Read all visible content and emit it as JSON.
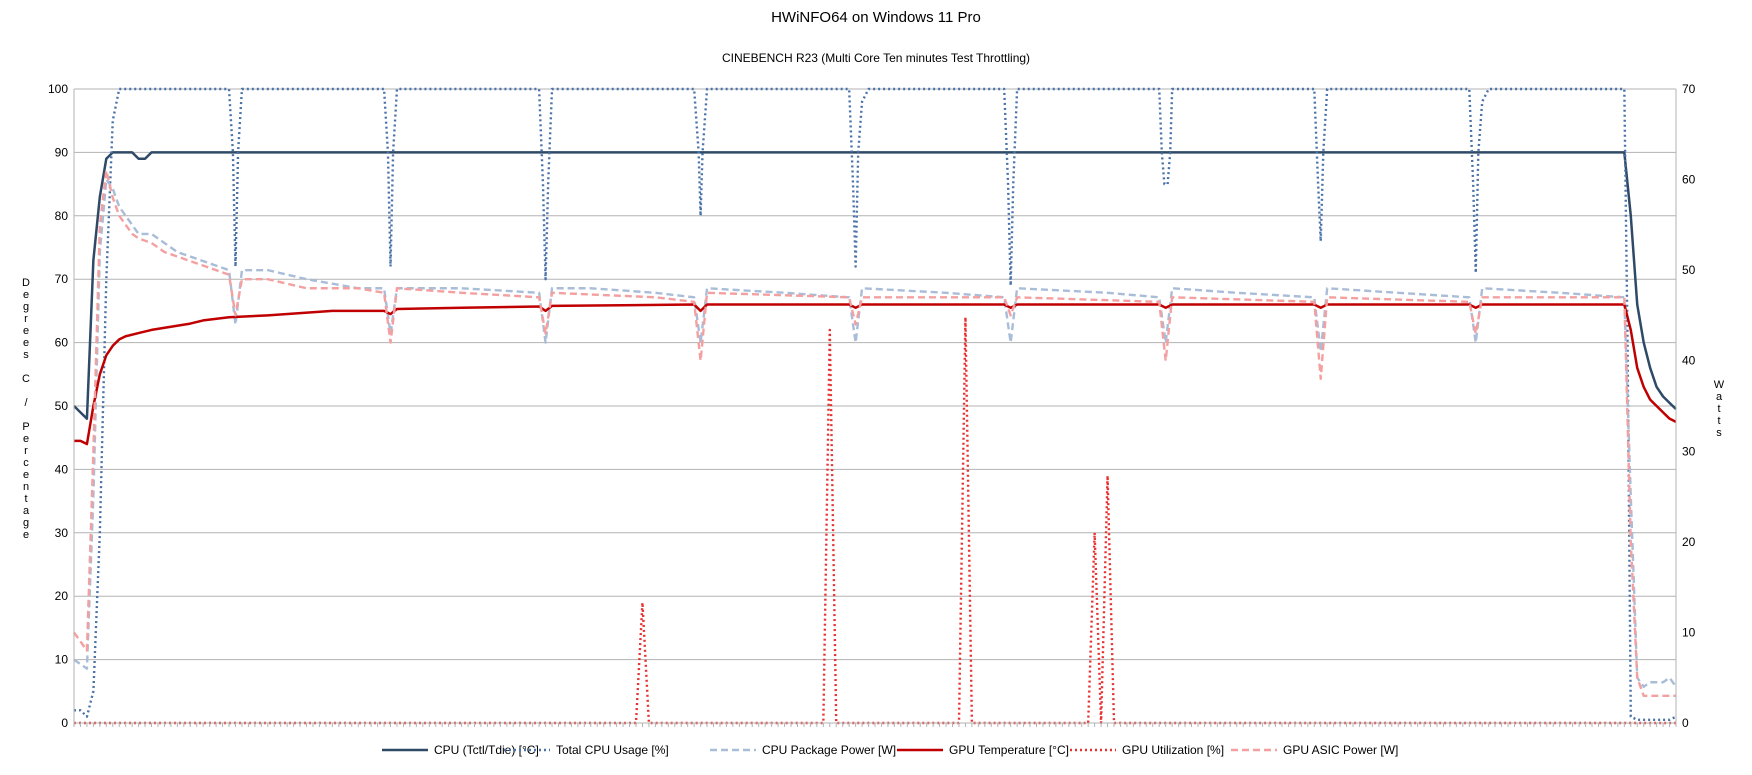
{
  "chart_data": {
    "type": "line",
    "title": "HWiNFO64 on Windows 11 Pro",
    "subtitle": "CINEBENCH R23 (Multi Core Ten minutes Test Throttling)",
    "ylabel": "Degrees C / Percentage",
    "y2label": "Watts",
    "ylim": [
      0,
      100
    ],
    "y2lim": [
      0,
      70
    ],
    "yticks": [
      0,
      10,
      20,
      30,
      40,
      50,
      60,
      70,
      80,
      90,
      100
    ],
    "y2ticks": [
      0,
      10,
      20,
      30,
      40,
      50,
      60,
      70
    ],
    "grid": true,
    "legend_position": "bottom",
    "x_count": 249,
    "series": [
      {
        "name": "CPU (Tctl/Tdie) [°C]",
        "axis": "left",
        "color": "#2e4a66",
        "style": "solid",
        "points": [
          [
            0,
            50
          ],
          [
            1,
            49
          ],
          [
            2,
            48
          ],
          [
            3,
            73
          ],
          [
            4,
            83
          ],
          [
            5,
            89
          ],
          [
            6,
            90
          ],
          [
            7,
            90
          ],
          [
            8,
            90
          ],
          [
            9,
            90
          ],
          [
            10,
            89
          ],
          [
            11,
            89
          ],
          [
            12,
            90
          ],
          [
            13,
            90
          ],
          [
            14,
            90
          ],
          [
            20,
            90
          ],
          [
            30,
            90
          ],
          [
            60,
            90
          ],
          [
            100,
            90
          ],
          [
            150,
            90
          ],
          [
            200,
            90
          ],
          [
            240,
            90
          ],
          [
            241,
            80
          ],
          [
            242,
            66
          ],
          [
            243,
            60
          ],
          [
            244,
            56
          ],
          [
            245,
            53
          ],
          [
            246,
            51.5
          ],
          [
            247,
            50.5
          ],
          [
            248,
            49.5
          ]
        ]
      },
      {
        "name": "Total CPU Usage [%]",
        "axis": "left",
        "color": "#4a72a8",
        "style": "dotted",
        "points": [
          [
            0,
            2
          ],
          [
            1,
            2
          ],
          [
            2,
            1
          ],
          [
            3,
            5
          ],
          [
            4,
            30
          ],
          [
            5,
            70
          ],
          [
            6,
            95
          ],
          [
            7,
            100
          ],
          [
            24,
            100
          ],
          [
            24.6,
            90
          ],
          [
            25,
            72
          ],
          [
            25.4,
            90
          ],
          [
            26,
            100
          ],
          [
            48,
            100
          ],
          [
            48.6,
            90
          ],
          [
            49,
            72
          ],
          [
            49.4,
            90
          ],
          [
            50,
            100
          ],
          [
            72,
            100
          ],
          [
            72.6,
            85
          ],
          [
            73,
            70
          ],
          [
            73.4,
            85
          ],
          [
            74,
            100
          ],
          [
            96,
            100
          ],
          [
            96.7,
            90
          ],
          [
            97,
            80
          ],
          [
            97.3,
            90
          ],
          [
            98,
            100
          ],
          [
            120,
            100
          ],
          [
            120.6,
            85
          ],
          [
            121,
            72
          ],
          [
            121.4,
            90
          ],
          [
            122,
            98
          ],
          [
            123,
            100
          ],
          [
            144,
            100
          ],
          [
            144.6,
            85
          ],
          [
            145,
            69
          ],
          [
            145.4,
            85
          ],
          [
            146,
            100
          ],
          [
            168,
            100
          ],
          [
            168.4,
            90
          ],
          [
            168.8,
            85
          ],
          [
            169.3,
            85
          ],
          [
            169.7,
            90
          ],
          [
            170,
            100
          ],
          [
            192,
            100
          ],
          [
            192.6,
            85
          ],
          [
            193,
            76
          ],
          [
            193.4,
            90
          ],
          [
            194,
            100
          ],
          [
            216,
            100
          ],
          [
            216.6,
            85
          ],
          [
            217,
            71
          ],
          [
            217.4,
            90
          ],
          [
            218,
            98
          ],
          [
            219,
            100
          ],
          [
            240,
            100
          ],
          [
            240.5,
            60
          ],
          [
            241,
            1
          ],
          [
            242,
            0.5
          ],
          [
            244,
            0.5
          ],
          [
            246,
            0.5
          ],
          [
            247,
            0.5
          ],
          [
            248,
            1
          ]
        ]
      },
      {
        "name": "CPU Package Power [W]",
        "axis": "right",
        "color": "#a9bdd8",
        "style": "dashed",
        "points": [
          [
            0,
            7
          ],
          [
            1,
            6.5
          ],
          [
            2,
            6
          ],
          [
            3,
            25
          ],
          [
            4,
            52
          ],
          [
            5,
            60
          ],
          [
            6,
            59
          ],
          [
            7,
            57
          ],
          [
            8,
            56
          ],
          [
            9,
            55
          ],
          [
            10,
            54
          ],
          [
            12,
            54
          ],
          [
            14,
            53
          ],
          [
            16,
            52
          ],
          [
            18,
            51.5
          ],
          [
            20,
            51
          ],
          [
            22,
            50.5
          ],
          [
            24,
            50
          ],
          [
            25,
            44
          ],
          [
            26,
            50
          ],
          [
            30,
            50
          ],
          [
            36,
            49
          ],
          [
            44,
            48
          ],
          [
            48,
            48
          ],
          [
            49,
            43
          ],
          [
            50,
            48
          ],
          [
            60,
            48
          ],
          [
            72,
            47.5
          ],
          [
            73,
            42
          ],
          [
            74,
            48
          ],
          [
            80,
            48
          ],
          [
            90,
            47.5
          ],
          [
            96,
            47
          ],
          [
            97,
            42
          ],
          [
            98,
            48
          ],
          [
            110,
            47.5
          ],
          [
            120,
            47
          ],
          [
            121,
            42
          ],
          [
            122,
            48
          ],
          [
            135,
            47.5
          ],
          [
            144,
            47
          ],
          [
            145,
            42
          ],
          [
            146,
            48
          ],
          [
            160,
            47.5
          ],
          [
            168,
            47
          ],
          [
            169,
            42
          ],
          [
            170,
            48
          ],
          [
            180,
            47.5
          ],
          [
            192,
            47
          ],
          [
            193,
            41
          ],
          [
            194,
            48
          ],
          [
            205,
            47.5
          ],
          [
            216,
            47
          ],
          [
            217,
            42
          ],
          [
            218,
            48
          ],
          [
            230,
            47.5
          ],
          [
            240,
            47
          ],
          [
            241,
            25
          ],
          [
            242,
            5
          ],
          [
            243,
            4
          ],
          [
            244,
            4.5
          ],
          [
            246,
            4.5
          ],
          [
            247,
            5
          ],
          [
            248,
            4
          ]
        ]
      },
      {
        "name": "GPU Temperature [°C]",
        "axis": "left",
        "color": "#c00000",
        "style": "solid",
        "points": [
          [
            0,
            44.5
          ],
          [
            1,
            44.5
          ],
          [
            2,
            44
          ],
          [
            3,
            50
          ],
          [
            4,
            55
          ],
          [
            5,
            58
          ],
          [
            6,
            59.5
          ],
          [
            7,
            60.5
          ],
          [
            8,
            61
          ],
          [
            10,
            61.5
          ],
          [
            12,
            62
          ],
          [
            15,
            62.5
          ],
          [
            18,
            63
          ],
          [
            20,
            63.5
          ],
          [
            24,
            64
          ],
          [
            30,
            64.3
          ],
          [
            40,
            65
          ],
          [
            48,
            65
          ],
          [
            49,
            64.5
          ],
          [
            50,
            65.3
          ],
          [
            60,
            65.5
          ],
          [
            72,
            65.7
          ],
          [
            73,
            65
          ],
          [
            74,
            65.8
          ],
          [
            96,
            66
          ],
          [
            97,
            65
          ],
          [
            98,
            66
          ],
          [
            120,
            66
          ],
          [
            121,
            65.5
          ],
          [
            122,
            66
          ],
          [
            144,
            66
          ],
          [
            145,
            65.5
          ],
          [
            146,
            66
          ],
          [
            168,
            66
          ],
          [
            169,
            65.5
          ],
          [
            170,
            66
          ],
          [
            192,
            66
          ],
          [
            193,
            65.5
          ],
          [
            194,
            66
          ],
          [
            216,
            66
          ],
          [
            217,
            65.5
          ],
          [
            218,
            66
          ],
          [
            240,
            66
          ],
          [
            241,
            62
          ],
          [
            242,
            56
          ],
          [
            243,
            53
          ],
          [
            244,
            51
          ],
          [
            245,
            50
          ],
          [
            246,
            49
          ],
          [
            247,
            48
          ],
          [
            248,
            47.5
          ]
        ]
      },
      {
        "name": "GPU Utilization [%]",
        "axis": "left",
        "color": "#e83030",
        "style": "dotted",
        "points": [
          [
            0,
            0
          ],
          [
            87,
            0
          ],
          [
            88,
            19
          ],
          [
            89,
            0
          ],
          [
            116,
            0
          ],
          [
            117,
            62
          ],
          [
            118,
            0
          ],
          [
            137,
            0
          ],
          [
            138,
            64
          ],
          [
            139,
            0
          ],
          [
            157,
            0
          ],
          [
            158,
            30
          ],
          [
            159,
            0
          ],
          [
            160,
            39
          ],
          [
            161,
            0
          ],
          [
            248,
            0
          ]
        ]
      },
      {
        "name": "GPU ASIC Power [W]",
        "axis": "right",
        "color": "#f4a0a0",
        "style": "dashed",
        "points": [
          [
            0,
            10
          ],
          [
            1,
            9
          ],
          [
            2,
            8
          ],
          [
            3,
            30
          ],
          [
            4,
            55
          ],
          [
            5,
            61
          ],
          [
            6,
            58
          ],
          [
            7,
            56
          ],
          [
            8,
            55
          ],
          [
            9,
            54
          ],
          [
            10,
            53.5
          ],
          [
            12,
            53
          ],
          [
            14,
            52
          ],
          [
            16,
            51.5
          ],
          [
            18,
            51
          ],
          [
            20,
            50.5
          ],
          [
            22,
            50
          ],
          [
            24,
            49.5
          ],
          [
            25,
            45
          ],
          [
            26,
            49
          ],
          [
            30,
            49
          ],
          [
            36,
            48
          ],
          [
            44,
            48
          ],
          [
            48,
            47.5
          ],
          [
            49,
            42
          ],
          [
            50,
            48
          ],
          [
            60,
            47.5
          ],
          [
            72,
            47
          ],
          [
            73,
            43
          ],
          [
            74,
            47.5
          ],
          [
            90,
            47
          ],
          [
            96,
            46.5
          ],
          [
            97,
            40
          ],
          [
            98,
            47.5
          ],
          [
            120,
            47
          ],
          [
            121,
            44
          ],
          [
            122,
            47
          ],
          [
            144,
            47
          ],
          [
            145,
            45
          ],
          [
            146,
            47
          ],
          [
            168,
            46.5
          ],
          [
            169,
            40
          ],
          [
            170,
            47
          ],
          [
            192,
            46.5
          ],
          [
            193,
            38
          ],
          [
            194,
            47
          ],
          [
            216,
            46.5
          ],
          [
            217,
            43
          ],
          [
            218,
            47
          ],
          [
            240,
            47
          ],
          [
            241,
            20
          ],
          [
            242,
            5
          ],
          [
            243,
            3
          ],
          [
            244,
            3
          ],
          [
            246,
            3
          ],
          [
            247,
            3
          ],
          [
            248,
            3
          ]
        ]
      }
    ]
  }
}
